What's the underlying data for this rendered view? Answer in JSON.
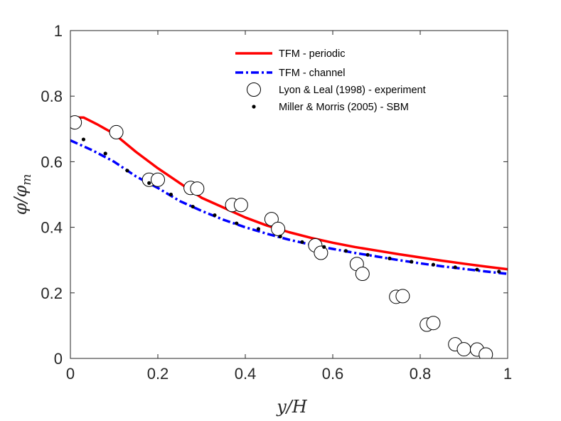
{
  "chart_data": {
    "type": "line",
    "xlabel": "y/H",
    "ylabel": "φ/φm",
    "ylabel_main": "φ/φ",
    "ylabel_sub": "m",
    "xlim": [
      0,
      1
    ],
    "ylim": [
      0,
      1
    ],
    "xticks": [
      0,
      0.2,
      0.4,
      0.6,
      0.8,
      1
    ],
    "xtick_labels": [
      "0",
      "0.2",
      "0.4",
      "0.6",
      "0.8",
      "1"
    ],
    "yticks": [
      0,
      0.2,
      0.4,
      0.6,
      0.8,
      1
    ],
    "ytick_labels": [
      "0",
      "0.2",
      "0.4",
      "0.6",
      "0.8",
      "1"
    ],
    "grid": false,
    "legend_position": "top-right",
    "series": [
      {
        "name": "TFM - periodic",
        "style": "solid-line",
        "color": "#ff0000",
        "x": [
          0.0,
          0.01,
          0.03,
          0.06,
          0.1,
          0.15,
          0.2,
          0.25,
          0.3,
          0.35,
          0.4,
          0.45,
          0.5,
          0.55,
          0.6,
          0.65,
          0.7,
          0.75,
          0.8,
          0.85,
          0.9,
          0.95,
          1.0
        ],
        "y": [
          0.72,
          0.735,
          0.735,
          0.715,
          0.685,
          0.63,
          0.58,
          0.535,
          0.49,
          0.46,
          0.43,
          0.405,
          0.385,
          0.368,
          0.353,
          0.34,
          0.329,
          0.318,
          0.308,
          0.298,
          0.289,
          0.28,
          0.272
        ]
      },
      {
        "name": "TFM - channel",
        "style": "dash-dot-line",
        "color": "#0000ff",
        "x": [
          0.0,
          0.05,
          0.1,
          0.15,
          0.2,
          0.25,
          0.3,
          0.35,
          0.4,
          0.45,
          0.5,
          0.55,
          0.6,
          0.65,
          0.7,
          0.75,
          0.8,
          0.85,
          0.9,
          0.95,
          1.0
        ],
        "y": [
          0.665,
          0.635,
          0.6,
          0.555,
          0.52,
          0.48,
          0.45,
          0.423,
          0.4,
          0.38,
          0.362,
          0.347,
          0.334,
          0.322,
          0.311,
          0.3,
          0.29,
          0.281,
          0.273,
          0.265,
          0.258
        ]
      },
      {
        "name": "Lyon & Leal (1998) - experiment",
        "style": "open-circle-marker",
        "color": "#000000",
        "x": [
          0.01,
          0.105,
          0.18,
          0.2,
          0.275,
          0.29,
          0.37,
          0.39,
          0.46,
          0.475,
          0.56,
          0.573,
          0.655,
          0.668,
          0.745,
          0.76,
          0.815,
          0.83,
          0.88,
          0.9,
          0.93,
          0.95
        ],
        "y": [
          0.72,
          0.69,
          0.545,
          0.545,
          0.52,
          0.518,
          0.468,
          0.468,
          0.425,
          0.395,
          0.345,
          0.322,
          0.288,
          0.258,
          0.188,
          0.19,
          0.103,
          0.108,
          0.043,
          0.028,
          0.027,
          0.012
        ]
      },
      {
        "name": "Miller & Morris (2005) - SBM",
        "style": "dot-marker",
        "color": "#000000",
        "x": [
          0.03,
          0.08,
          0.13,
          0.18,
          0.23,
          0.28,
          0.33,
          0.38,
          0.43,
          0.48,
          0.53,
          0.58,
          0.63,
          0.68,
          0.73,
          0.78,
          0.83,
          0.88,
          0.93,
          0.98
        ],
        "y": [
          0.668,
          0.625,
          0.573,
          0.535,
          0.5,
          0.463,
          0.437,
          0.412,
          0.395,
          0.372,
          0.355,
          0.34,
          0.328,
          0.316,
          0.305,
          0.295,
          0.286,
          0.278,
          0.271,
          0.265
        ]
      }
    ]
  }
}
